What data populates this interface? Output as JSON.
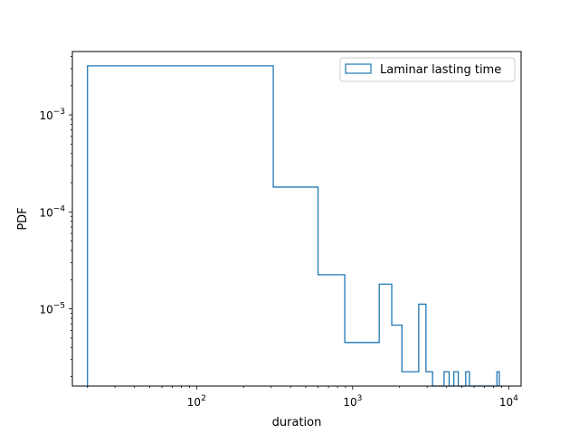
{
  "chart_data": {
    "type": "histogram-step",
    "title": "",
    "xlabel": "duration",
    "ylabel": "PDF",
    "xscale": "log",
    "yscale": "log",
    "xlim": [
      16,
      12000
    ],
    "ylim": [
      1.6e-06,
      0.0045
    ],
    "grid": false,
    "legend": {
      "position": "top-right",
      "entries": [
        "Laminar lasting time"
      ]
    },
    "series": [
      {
        "name": "Laminar lasting time",
        "color": "#1f77b4",
        "bins": [
          {
            "left": 20,
            "right": 310,
            "value": 0.0032
          },
          {
            "left": 310,
            "right": 600,
            "value": 0.00018
          },
          {
            "left": 600,
            "right": 890,
            "value": 2.25e-05
          },
          {
            "left": 890,
            "right": 1480,
            "value": 4.5e-06
          },
          {
            "left": 1480,
            "right": 1780,
            "value": 1.8e-05
          },
          {
            "left": 1780,
            "right": 2070,
            "value": 6.8e-06
          },
          {
            "left": 2070,
            "right": 2650,
            "value": 2.25e-06
          },
          {
            "left": 2650,
            "right": 2950,
            "value": 1.12e-05
          },
          {
            "left": 2950,
            "right": 3250,
            "value": 2.25e-06
          },
          {
            "left": 3250,
            "right": 3850,
            "value": 0
          },
          {
            "left": 3850,
            "right": 4150,
            "value": 2.25e-06
          },
          {
            "left": 4150,
            "right": 4450,
            "value": 0
          },
          {
            "left": 4450,
            "right": 4750,
            "value": 2.25e-06
          },
          {
            "left": 4750,
            "right": 5300,
            "value": 0
          },
          {
            "left": 5300,
            "right": 5600,
            "value": 2.25e-06
          },
          {
            "left": 5600,
            "right": 8400,
            "value": 0
          },
          {
            "left": 8400,
            "right": 8700,
            "value": 2.25e-06
          }
        ]
      }
    ],
    "xticks": [
      {
        "value": 100,
        "base": "10",
        "exp": "2"
      },
      {
        "value": 1000,
        "base": "10",
        "exp": "3"
      },
      {
        "value": 10000,
        "base": "10",
        "exp": "4"
      }
    ],
    "yticks": [
      {
        "value": 1e-05,
        "base": "10",
        "exp": "−5"
      },
      {
        "value": 0.0001,
        "base": "10",
        "exp": "−4"
      },
      {
        "value": 0.001,
        "base": "10",
        "exp": "−3"
      }
    ]
  }
}
